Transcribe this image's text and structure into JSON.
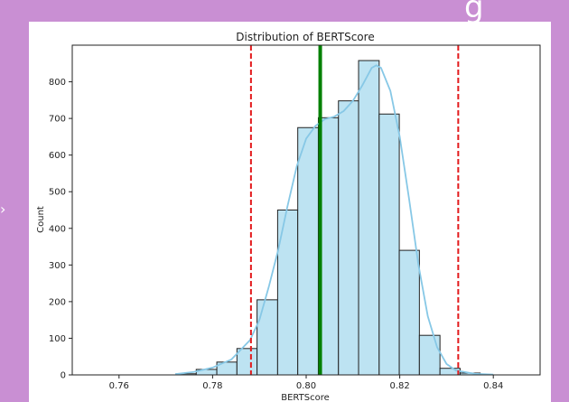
{
  "chart_data": {
    "type": "bar",
    "title": "Distribution of BERTScore",
    "xlabel": "BERTScore",
    "ylabel": "Count",
    "xlim": [
      0.75,
      0.85
    ],
    "ylim": [
      0,
      900
    ],
    "xticks": [
      "0.76",
      "0.78",
      "0.80",
      "0.82",
      "0.84"
    ],
    "xtick_values": [
      0.76,
      0.78,
      0.8,
      0.82,
      0.84
    ],
    "yticks": [
      "0",
      "100",
      "200",
      "300",
      "400",
      "500",
      "600",
      "700",
      "800"
    ],
    "ytick_values": [
      0,
      100,
      200,
      300,
      400,
      500,
      600,
      700,
      800
    ],
    "bins": [
      {
        "start": 0.7722,
        "end": 0.7765,
        "count": 3
      },
      {
        "start": 0.7765,
        "end": 0.7809,
        "count": 15
      },
      {
        "start": 0.7809,
        "end": 0.7852,
        "count": 35
      },
      {
        "start": 0.7852,
        "end": 0.7895,
        "count": 72
      },
      {
        "start": 0.7895,
        "end": 0.7939,
        "count": 205
      },
      {
        "start": 0.7939,
        "end": 0.7982,
        "count": 450
      },
      {
        "start": 0.7982,
        "end": 0.8026,
        "count": 675
      },
      {
        "start": 0.8026,
        "end": 0.8069,
        "count": 702
      },
      {
        "start": 0.8069,
        "end": 0.8112,
        "count": 748
      },
      {
        "start": 0.8112,
        "end": 0.8156,
        "count": 858
      },
      {
        "start": 0.8156,
        "end": 0.8199,
        "count": 712
      },
      {
        "start": 0.8199,
        "end": 0.8242,
        "count": 340
      },
      {
        "start": 0.8242,
        "end": 0.8286,
        "count": 108
      },
      {
        "start": 0.8286,
        "end": 0.8329,
        "count": 18
      },
      {
        "start": 0.8329,
        "end": 0.8372,
        "count": 5
      }
    ],
    "kde": [
      [
        0.772,
        2
      ],
      [
        0.776,
        8
      ],
      [
        0.78,
        20
      ],
      [
        0.784,
        42
      ],
      [
        0.788,
        95
      ],
      [
        0.79,
        150
      ],
      [
        0.792,
        240
      ],
      [
        0.794,
        340
      ],
      [
        0.796,
        460
      ],
      [
        0.798,
        570
      ],
      [
        0.8,
        645
      ],
      [
        0.802,
        680
      ],
      [
        0.804,
        698
      ],
      [
        0.806,
        705
      ],
      [
        0.808,
        720
      ],
      [
        0.81,
        748
      ],
      [
        0.812,
        790
      ],
      [
        0.814,
        838
      ],
      [
        0.815,
        845
      ],
      [
        0.816,
        838
      ],
      [
        0.818,
        775
      ],
      [
        0.82,
        650
      ],
      [
        0.822,
        480
      ],
      [
        0.824,
        300
      ],
      [
        0.826,
        160
      ],
      [
        0.828,
        75
      ],
      [
        0.83,
        30
      ],
      [
        0.832,
        12
      ],
      [
        0.836,
        3
      ],
      [
        0.84,
        1
      ]
    ],
    "vlines": [
      {
        "x": 0.7882,
        "color": "#e31a1c",
        "style": "dashed"
      },
      {
        "x": 0.803,
        "color": "#008000",
        "style": "solid"
      },
      {
        "x": 0.8325,
        "color": "#e31a1c",
        "style": "dashed"
      }
    ],
    "colors": {
      "bar_fill": "#bde3f2",
      "bar_edge": "#222222",
      "kde": "#87c8e6"
    }
  }
}
